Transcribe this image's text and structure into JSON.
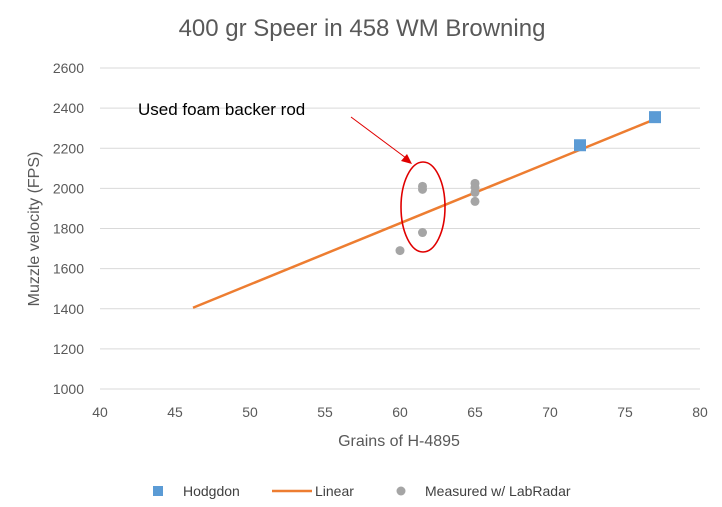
{
  "chart_data": {
    "type": "scatter",
    "title": "400 gr Speer in 458 WM Browning",
    "xlabel": "Grains of H-4895",
    "ylabel": "Muzzle velocity (FPS)",
    "xlim": [
      40,
      80
    ],
    "ylim": [
      1000,
      2600
    ],
    "xticks": [
      40,
      45,
      50,
      55,
      60,
      65,
      70,
      75,
      80
    ],
    "yticks": [
      1000,
      1200,
      1400,
      1600,
      1800,
      2000,
      2200,
      2400,
      2600
    ],
    "grid": "horizontal",
    "legend_position": "bottom",
    "series": [
      {
        "name": "Hodgdon",
        "kind": "scatter",
        "marker": "square",
        "color": "#5b9bd5",
        "x": [
          72,
          77
        ],
        "y": [
          2215,
          2355
        ]
      },
      {
        "name": "Linear",
        "kind": "line",
        "color": "#ed7d31",
        "x": [
          46.2,
          77
        ],
        "y": [
          1405,
          2345
        ]
      },
      {
        "name": "Measured w/ LabRadar",
        "kind": "scatter",
        "marker": "circle",
        "color": "#a5a5a5",
        "x": [
          60,
          61.5,
          61.5,
          61.5,
          65,
          65,
          65,
          65
        ],
        "y": [
          1690,
          1780,
          1995,
          2010,
          1935,
          1980,
          2005,
          2025
        ]
      }
    ],
    "annotations": [
      {
        "text": "Used  foam backer rod",
        "color": "#000000",
        "marker": "ellipse",
        "marker_color": "#e00000",
        "target_x": 61.5,
        "target_y": 1900
      }
    ]
  }
}
